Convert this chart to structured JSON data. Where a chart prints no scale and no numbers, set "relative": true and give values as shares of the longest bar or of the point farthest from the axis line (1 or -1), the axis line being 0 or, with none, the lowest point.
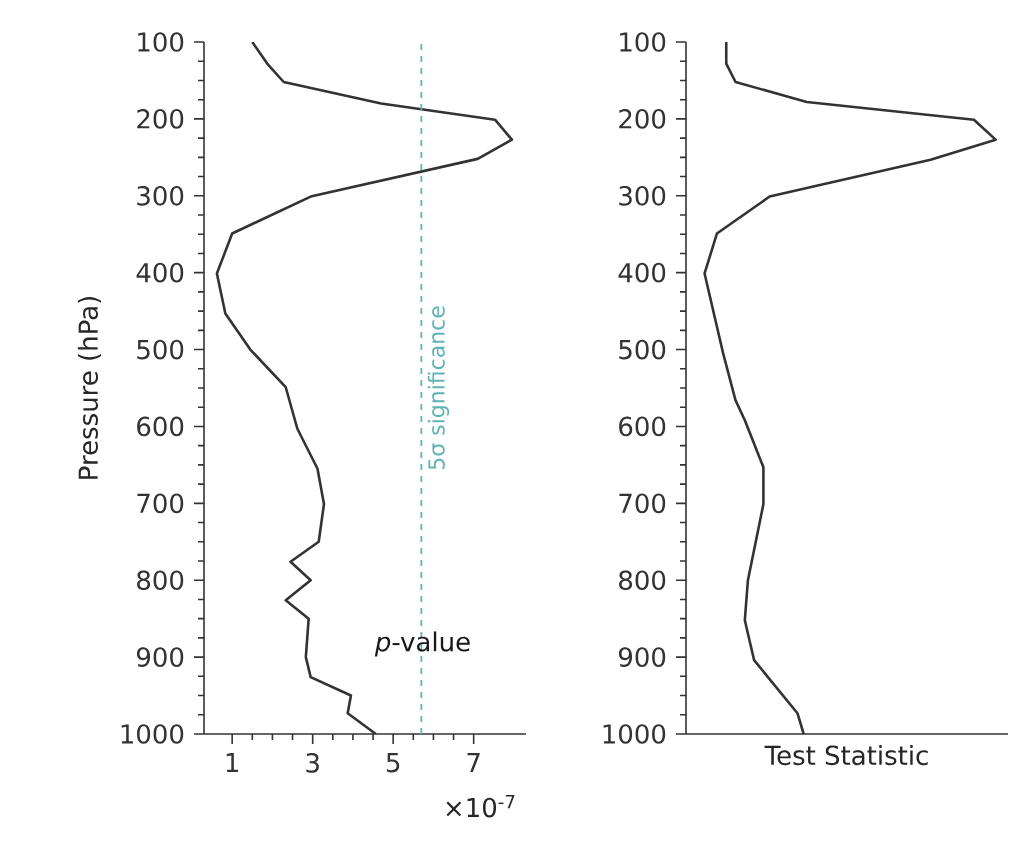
{
  "chart_data": [
    {
      "type": "line",
      "color": "#333333",
      "xlabel": "×10$^{-7}$",
      "ylabel": "Pressure (hPa)",
      "x": [
        1.5,
        1.87,
        2.28,
        4.7,
        7.53,
        7.95,
        7.1,
        2.95,
        1.0,
        0.62,
        0.83,
        1.45,
        2.33,
        2.62,
        3.12,
        3.28,
        3.15,
        2.45,
        2.95,
        2.33,
        2.9,
        2.83,
        2.95,
        3.95,
        3.87,
        4.57
      ],
      "values": [
        100,
        128,
        152,
        180,
        201,
        227,
        252,
        301,
        349,
        401,
        453,
        500,
        549,
        603,
        655,
        701,
        750,
        776,
        800,
        826,
        850,
        900,
        926,
        950,
        973,
        1000
      ],
      "xlim": [
        0.3,
        8.3
      ],
      "xticks": [
        1,
        3,
        5,
        7
      ],
      "ylim": [
        1000,
        100
      ],
      "yticks": [
        100,
        200,
        300,
        400,
        500,
        600,
        700,
        800,
        900,
        1000
      ],
      "annotations": [
        "*p*-value"
      ],
      "ref_lines": [
        {
          "axis": "x",
          "value": 5.7,
          "label": "5σ significance",
          "color": "#5fb3b3",
          "line_style": "dashed"
        }
      ]
    },
    {
      "type": "line",
      "color": "#333333",
      "relative": true,
      "orientation": "horizontal",
      "tick_labels": "y",
      "xlabel": "Test Statistic",
      "values": [
        0.13,
        0.13,
        0.16,
        0.39,
        0.93,
        1,
        0.79,
        0.27,
        0.1,
        0.06,
        0.09,
        0.12,
        0.16,
        0.19,
        0.25,
        0.25,
        0.2,
        0.19,
        0.22,
        0.36,
        0.38
      ],
      "x": [
        100,
        128,
        152,
        178,
        201,
        227,
        253,
        301,
        349,
        401,
        453,
        505,
        566,
        592,
        653,
        701,
        800,
        852,
        904,
        973,
        1000
      ],
      "ylim": [
        1000,
        100
      ],
      "yticks": [
        100,
        200,
        300,
        400,
        500,
        600,
        700,
        800,
        900,
        1000
      ]
    }
  ]
}
